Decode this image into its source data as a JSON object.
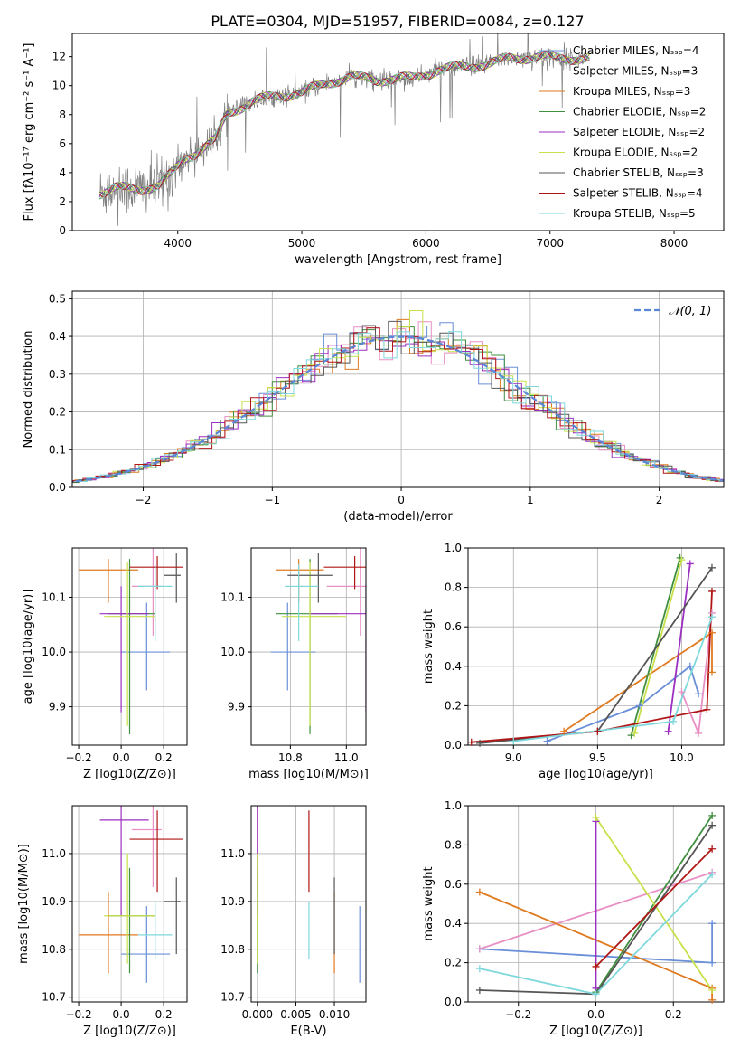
{
  "figure_title": "PLATE=0304, MJD=51957, FIBERID=0084, z=0.127",
  "colors": {
    "Chabrier MILES": "#6a8fd8",
    "Salpeter MILES": "#e88fc4",
    "Kroupa MILES": "#e07a1f",
    "Chabrier ELODIE": "#3f8f3f",
    "Salpeter ELODIE": "#9b2fbf",
    "Kroupa ELODIE": "#c8e04a",
    "Chabrier STELIB": "#555555",
    "Salpeter STELIB": "#b01515",
    "Kroupa STELIB": "#7ed8dc",
    "data": "#808080",
    "normal": "#5b86d6"
  },
  "chart_data": [
    {
      "id": "spectrum",
      "type": "line",
      "xlabel": "wavelength [Angstrom, rest frame]",
      "ylabel": "Flux [fλ10⁻¹⁷ erg cm⁻² s⁻¹ A⁻¹]",
      "xlim": [
        3150,
        8400
      ],
      "ylim": [
        0,
        13.6
      ],
      "xticks": [
        4000,
        5000,
        6000,
        7000,
        8000
      ],
      "yticks": [
        0,
        2,
        4,
        6,
        8,
        10,
        12
      ],
      "grid": false,
      "legend": [
        "Chabrier MILES, N_SSP=4",
        "Salpeter MILES, N_SSP=3",
        "Kroupa MILES, N_SSP=3",
        "Chabrier ELODIE, N_SSP=2",
        "Salpeter ELODIE, N_SSP=2",
        "Kroupa ELODIE, N_SSP=2",
        "Chabrier STELIB, N_SSP=3",
        "Salpeter STELIB, N_SSP=4",
        "Kroupa STELIB, N_SSP=5"
      ],
      "legend_placement": "right",
      "continuum": [
        [
          3370,
          2.6
        ],
        [
          3500,
          2.9
        ],
        [
          3700,
          2.9
        ],
        [
          3850,
          3.1
        ],
        [
          3950,
          3.9
        ],
        [
          4050,
          5.0
        ],
        [
          4150,
          5.4
        ],
        [
          4300,
          6.2
        ],
        [
          4400,
          8.1
        ],
        [
          4600,
          8.9
        ],
        [
          4800,
          9.3
        ],
        [
          5000,
          9.5
        ],
        [
          5200,
          10.2
        ],
        [
          5400,
          10.6
        ],
        [
          5600,
          10.4
        ],
        [
          5800,
          10.5
        ],
        [
          5900,
          10.5
        ],
        [
          6100,
          11.1
        ],
        [
          6300,
          11.3
        ],
        [
          6500,
          11.5
        ],
        [
          6700,
          11.9
        ],
        [
          6900,
          12.0
        ],
        [
          7100,
          11.9
        ],
        [
          7300,
          11.9
        ]
      ],
      "model_end": 7320
    },
    {
      "id": "residuals",
      "type": "bar",
      "xlabel": "(data-model)/error",
      "ylabel": "Normed distribution",
      "xlim": [
        -2.55,
        2.5
      ],
      "ylim": [
        0,
        0.52
      ],
      "xticks": [
        -2,
        -1,
        0,
        1,
        2
      ],
      "yticks": [
        0.0,
        0.1,
        0.2,
        0.3,
        0.4,
        0.5
      ],
      "grid": true,
      "legend": [
        "𝒩(0, 1)"
      ],
      "legend_placement": "top-right",
      "bin_width": 0.1
    },
    {
      "id": "age-vs-Z",
      "type": "scatter",
      "xlabel": "Z [log10(Z/Z⊙)]",
      "ylabel": "age  [log10(age/yr)]",
      "xlim": [
        -0.23,
        0.31
      ],
      "ylim": [
        9.83,
        10.19
      ],
      "xticks": [
        -0.2,
        0.0,
        0.2
      ],
      "yticks": [
        9.9,
        10.0,
        10.1
      ],
      "grid": true
    },
    {
      "id": "age-vs-mass",
      "type": "scatter",
      "xlabel": "mass [log10(M/M⊙)]",
      "ylabel": "",
      "xlim": [
        10.66,
        11.07
      ],
      "ylim": [
        9.83,
        10.19
      ],
      "xticks": [
        10.8,
        11.0
      ],
      "yticks": [
        9.9,
        10.0,
        10.1
      ],
      "grid": true
    },
    {
      "id": "weight-vs-age",
      "type": "line",
      "xlabel": "age  [log10(age/yr)]",
      "ylabel": "mass weight",
      "xlim": [
        8.73,
        10.25
      ],
      "ylim": [
        0,
        1.0
      ],
      "xticks": [
        9.0,
        9.5,
        10.0
      ],
      "yticks": [
        0.0,
        0.2,
        0.4,
        0.6,
        0.8,
        1.0
      ],
      "grid": true
    },
    {
      "id": "mass-vs-Z",
      "type": "scatter",
      "xlabel": "Z [log10(Z/Z⊙)]",
      "ylabel": "mass [log10(M/M⊙)]",
      "xlim": [
        -0.23,
        0.31
      ],
      "ylim": [
        10.69,
        11.1
      ],
      "xticks": [
        -0.2,
        0.0,
        0.2
      ],
      "yticks": [
        10.7,
        10.8,
        10.9,
        11.0
      ],
      "grid": true
    },
    {
      "id": "mass-vs-ebv",
      "type": "scatter",
      "xlabel": "E(B-V)",
      "ylabel": "",
      "xlim": [
        -0.0008,
        0.0141
      ],
      "ylim": [
        10.69,
        11.1
      ],
      "xticks": [
        0.0,
        0.005,
        0.01
      ],
      "yticks": [
        10.7,
        10.8,
        10.9,
        11.0
      ],
      "grid": true
    },
    {
      "id": "weight-vs-Z",
      "type": "line",
      "xlabel": "Z [log10(Z/Z⊙)]",
      "ylabel": "mass weight",
      "xlim": [
        -0.33,
        0.33
      ],
      "ylim": [
        0,
        1.0
      ],
      "xticks": [
        -0.2,
        0.0,
        0.2
      ],
      "yticks": [
        0.0,
        0.2,
        0.4,
        0.6,
        0.8,
        1.0
      ],
      "grid": true
    }
  ],
  "models": [
    {
      "name": "Chabrier MILES",
      "age": 10.0,
      "age_err": [
        0.07,
        0.09
      ],
      "Z": 0.12,
      "Z_err": [
        0.12,
        0.11
      ],
      "mass": 10.79,
      "mass_err": [
        0.06,
        0.1
      ],
      "ebv": 0.0133,
      "ebv_err": [
        0.007,
        0.08
      ],
      "age_w": [
        [
          9.2,
          0.02
        ],
        [
          9.75,
          0.2
        ],
        [
          10.05,
          0.4
        ],
        [
          10.1,
          0.26
        ]
      ],
      "Z_w": [
        [
          -0.3,
          0.27
        ],
        [
          0.3,
          0.2
        ],
        [
          0.3,
          0.4
        ]
      ]
    },
    {
      "name": "Salpeter MILES",
      "age": 10.12,
      "age_err": [
        0.09,
        0.08
      ],
      "Z": 0.15,
      "Z_err": [
        0.1,
        0.04
      ],
      "mass": 11.05,
      "mass_err": [
        0.12,
        0.11
      ],
      "ebv": 0.0,
      "ebv_err": [
        0.0,
        0.0
      ],
      "age_w": [
        [
          10.0,
          0.27
        ],
        [
          10.1,
          0.06
        ],
        [
          10.18,
          0.67
        ]
      ],
      "Z_w": [
        [
          -0.3,
          0.27
        ],
        [
          0.3,
          0.66
        ]
      ]
    },
    {
      "name": "Kroupa MILES",
      "age": 10.15,
      "age_err": [
        0.06,
        0.02
      ],
      "Z": -0.06,
      "Z_err": [
        0.14,
        0.14
      ],
      "mass": 10.83,
      "mass_err": [
        0.08,
        0.09
      ],
      "ebv": 0.01,
      "ebv_err": [
        0.05,
        0.05
      ],
      "age_w": [
        [
          9.3,
          0.07
        ],
        [
          10.18,
          0.57
        ],
        [
          10.18,
          0.37
        ]
      ],
      "Z_w": [
        [
          -0.3,
          0.56
        ],
        [
          0.3,
          0.07
        ],
        [
          0.3,
          0.01
        ]
      ]
    },
    {
      "name": "Chabrier ELODIE",
      "age": 10.07,
      "age_err": [
        0.22,
        0.1
      ],
      "Z": 0.04,
      "Z_err": [
        0.1,
        0.12
      ],
      "mass": 10.87,
      "mass_err": [
        0.12,
        0.1
      ],
      "ebv": 0.0,
      "ebv_err": [
        0.0,
        0.0
      ],
      "age_w": [
        [
          9.7,
          0.05
        ],
        [
          9.99,
          0.95
        ]
      ],
      "Z_w": [
        [
          0.0,
          0.05
        ],
        [
          0.3,
          0.95
        ]
      ]
    },
    {
      "name": "Salpeter ELODIE",
      "age": 10.07,
      "age_err": [
        0.18,
        0.05
      ],
      "Z": 0.0,
      "Z_err": [
        0.1,
        0.13
      ],
      "mass": 11.07,
      "mass_err": [
        0.2,
        0.11
      ],
      "ebv": 0.0,
      "ebv_err": [
        0.05,
        0.07
      ],
      "age_w": [
        [
          9.92,
          0.07
        ],
        [
          10.05,
          0.92
        ]
      ],
      "Z_w": [
        [
          0.0,
          0.07
        ],
        [
          0.0,
          0.92
        ]
      ]
    },
    {
      "name": "Kroupa ELODIE",
      "age": 10.065,
      "age_err": [
        0.2,
        0.1
      ],
      "Z": 0.03,
      "Z_err": [
        0.11,
        0.13
      ],
      "mass": 10.87,
      "mass_err": [
        0.1,
        0.13
      ],
      "ebv": 0.0,
      "ebv_err": [
        0.0,
        0.0
      ],
      "age_w": [
        [
          9.72,
          0.06
        ],
        [
          10.0,
          0.94
        ]
      ],
      "Z_w": [
        [
          0.0,
          0.94
        ],
        [
          0.3,
          0.06
        ]
      ]
    },
    {
      "name": "Chabrier STELIB",
      "age": 10.14,
      "age_err": [
        0.05,
        0.04
      ],
      "Z": 0.26,
      "Z_err": [
        0.06,
        0.02
      ],
      "mass": 10.9,
      "mass_err": [
        0.11,
        0.05
      ],
      "ebv": 0.01,
      "ebv_err": [
        0.07,
        0.05
      ],
      "age_w": [
        [
          8.8,
          0.01
        ],
        [
          9.5,
          0.07
        ],
        [
          10.18,
          0.9
        ]
      ],
      "Z_w": [
        [
          -0.3,
          0.06
        ],
        [
          0.0,
          0.04
        ],
        [
          0.3,
          0.9
        ]
      ]
    },
    {
      "name": "Salpeter STELIB",
      "age": 10.155,
      "age_err": [
        0.04,
        0.02
      ],
      "Z": 0.17,
      "Z_err": [
        0.13,
        0.12
      ],
      "mass": 11.03,
      "mass_err": [
        0.11,
        0.06
      ],
      "ebv": 0.0067,
      "ebv_err": [
        0.07,
        0.06
      ],
      "age_w": [
        [
          8.75,
          0.015
        ],
        [
          9.5,
          0.07
        ],
        [
          10.15,
          0.18
        ],
        [
          10.18,
          0.78
        ]
      ],
      "Z_w": [
        [
          0.0,
          0.18
        ],
        [
          0.3,
          0.78
        ]
      ]
    },
    {
      "name": "Kroupa STELIB",
      "age": 10.12,
      "age_err": [
        0.1,
        0.04
      ],
      "Z": 0.16,
      "Z_err": [
        0.08,
        0.08
      ],
      "mass": 10.83,
      "mass_err": [
        0.05,
        0.07
      ],
      "ebv": 0.0067,
      "ebv_err": [
        0.05,
        0.06
      ],
      "age_w": [
        [
          9.0,
          0.02
        ],
        [
          9.95,
          0.12
        ],
        [
          10.18,
          0.65
        ]
      ],
      "Z_w": [
        [
          -0.3,
          0.17
        ],
        [
          0.0,
          0.04
        ],
        [
          0.3,
          0.65
        ]
      ]
    }
  ]
}
